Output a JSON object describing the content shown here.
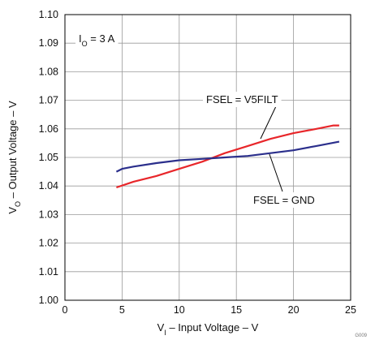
{
  "chart_data": {
    "type": "line",
    "x_axis": {
      "label_main": "V",
      "label_sub": "I",
      "label_rest": " – Input Voltage – V",
      "range": [
        0,
        25
      ],
      "ticks": [
        "0",
        "5",
        "10",
        "15",
        "20",
        "25"
      ]
    },
    "y_axis": {
      "label_main": "V",
      "label_sub": "O",
      "label_rest": " – Output Voltage – V",
      "range": [
        1.0,
        1.1
      ],
      "ticks": [
        "1.00",
        "1.01",
        "1.02",
        "1.03",
        "1.04",
        "1.05",
        "1.06",
        "1.07",
        "1.08",
        "1.09",
        "1.10"
      ]
    },
    "grid": true,
    "condition": {
      "main": "I",
      "sub": "O",
      "rest": " = 3 A"
    },
    "series": [
      {
        "name": "FSEL = V5FILT",
        "color": "#e8262a",
        "x": [
          4.5,
          6,
          8,
          10,
          12,
          14,
          16,
          18,
          20,
          22,
          23.5,
          24
        ],
        "y": [
          1.0395,
          1.0415,
          1.0435,
          1.046,
          1.0485,
          1.0515,
          1.054,
          1.0565,
          1.0585,
          1.06,
          1.0612,
          1.0612
        ]
      },
      {
        "name": "FSEL = GND",
        "color": "#2b2f8c",
        "x": [
          4.5,
          5,
          6,
          8,
          10,
          12,
          14,
          16,
          18,
          20,
          22,
          24
        ],
        "y": [
          1.045,
          1.046,
          1.0468,
          1.048,
          1.049,
          1.0495,
          1.05,
          1.0505,
          1.0515,
          1.0525,
          1.054,
          1.0555
        ]
      }
    ],
    "corner_code": "G009"
  }
}
